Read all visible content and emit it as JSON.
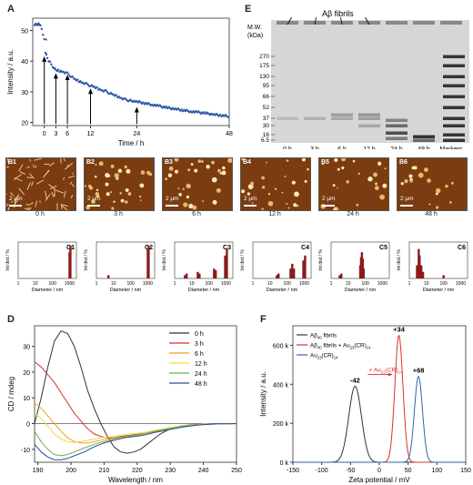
{
  "panels": {
    "A": "A",
    "B": [
      "B1",
      "B2",
      "B3",
      "B4",
      "B5",
      "B6"
    ],
    "C": [
      "C1",
      "C2",
      "C3",
      "C4",
      "C5",
      "C6"
    ],
    "D": "D",
    "E": "E",
    "F": "F"
  },
  "afm": {
    "scale": "2 μm",
    "times": [
      "0 h",
      "3 h",
      "6 h",
      "12 h",
      "24 h",
      "48 h"
    ]
  },
  "gel": {
    "title": "Aβ fibrils",
    "mw_label": "M.W.\n(kDa)",
    "mw_markers": [
      "270",
      "175",
      "130",
      "95",
      "66",
      "52",
      "37",
      "30",
      "16",
      "6.5"
    ],
    "lanes": [
      "0 h",
      "3 h",
      "6 h",
      "12 h",
      "24 h",
      "48 h",
      "Markers"
    ]
  },
  "colors": {
    "A_series": "#2a54a8",
    "D_0h": "#333333",
    "D_3h": "#d9302b",
    "D_6h": "#f0a020",
    "D_12h": "#e8e040",
    "D_24h": "#6ab04c",
    "D_48h": "#2b4e9c",
    "F_fibril": "#333333",
    "F_mix": "#d9302b",
    "F_au": "#3a5fb0",
    "C_bar": "#8b1a1a"
  },
  "chart_data": [
    {
      "id": "A",
      "type": "scatter",
      "xlabel": "Time / h",
      "ylabel": "Intensity / a.u.",
      "xticks": [
        0,
        3,
        6,
        12,
        24,
        48
      ],
      "yticks": [
        20,
        30,
        40,
        50
      ],
      "xlim": [
        -3,
        48
      ],
      "ylim": [
        19,
        54
      ],
      "arrows_at": [
        0,
        3,
        6,
        12,
        24
      ],
      "points": [
        [
          -2.5,
          52
        ],
        [
          -2,
          52
        ],
        [
          -1.5,
          52
        ],
        [
          -1,
          51.8
        ],
        [
          0,
          47
        ],
        [
          0.3,
          43
        ],
        [
          0.8,
          41
        ],
        [
          1.5,
          39.5
        ],
        [
          2.5,
          37.8
        ],
        [
          3,
          37
        ],
        [
          4,
          36.8
        ],
        [
          5,
          36.5
        ],
        [
          6,
          36
        ],
        [
          7,
          35
        ],
        [
          8,
          34
        ],
        [
          9,
          33.5
        ],
        [
          10,
          33
        ],
        [
          11,
          32.5
        ],
        [
          12,
          32
        ],
        [
          13,
          31.5
        ],
        [
          14,
          31
        ],
        [
          15,
          30.5
        ],
        [
          16,
          30.2
        ],
        [
          17,
          29.5
        ],
        [
          18,
          29
        ],
        [
          19,
          28.5
        ],
        [
          20,
          28
        ],
        [
          21,
          27.5
        ],
        [
          22,
          27.2
        ],
        [
          24,
          26.8
        ],
        [
          26,
          26.3
        ],
        [
          28,
          25.8
        ],
        [
          30,
          25.3
        ],
        [
          32,
          24.8
        ],
        [
          34,
          24.4
        ],
        [
          36,
          24
        ],
        [
          38,
          23.6
        ],
        [
          40,
          23.3
        ],
        [
          42,
          23
        ],
        [
          44,
          22.6
        ],
        [
          46,
          22.3
        ],
        [
          48,
          22
        ]
      ]
    },
    {
      "id": "C",
      "type": "bar",
      "xlabel": "Diameter / nm",
      "ylabel": "Int dist / %",
      "xticks": [
        "1",
        "10",
        "100",
        "1000"
      ],
      "series": [
        {
          "name": "C1",
          "log_x": [
            3.0,
            3.05
          ],
          "values": [
            0.8,
            1.0
          ]
        },
        {
          "name": "C2",
          "log_x": [
            0.7,
            3.0,
            3.05
          ],
          "values": [
            0.1,
            0.9,
            1.0
          ]
        },
        {
          "name": "C3",
          "log_x": [
            0.6,
            0.7,
            1.35,
            1.45,
            2.3,
            2.4,
            2.95,
            3.05
          ],
          "values": [
            0.1,
            0.15,
            0.2,
            0.15,
            0.3,
            0.25,
            0.7,
            0.9
          ]
        },
        {
          "name": "C4",
          "log_x": [
            1.4,
            1.5,
            2.2,
            2.3,
            2.4,
            2.95,
            3.05
          ],
          "values": [
            0.1,
            0.15,
            0.3,
            0.45,
            0.3,
            0.55,
            0.7
          ]
        },
        {
          "name": "C5",
          "log_x": [
            0.5,
            0.6,
            1.7,
            1.75,
            1.8,
            1.85,
            1.9
          ],
          "values": [
            0.1,
            0.15,
            0.4,
            0.65,
            0.8,
            0.6,
            0.3
          ]
        },
        {
          "name": "C6",
          "log_x": [
            0.45,
            0.55,
            0.6,
            0.7,
            0.8,
            2.0
          ],
          "values": [
            0.4,
            0.9,
            0.7,
            0.4,
            0.2,
            0.1
          ]
        }
      ]
    },
    {
      "id": "D",
      "type": "line",
      "xlabel": "Wavelength / nm",
      "ylabel": "CD / mdeg",
      "xticks": [
        190,
        200,
        210,
        220,
        230,
        240,
        250
      ],
      "yticks": [
        -10,
        0,
        10,
        20,
        30
      ],
      "xlim": [
        189,
        250
      ],
      "ylim": [
        -15,
        38
      ],
      "series": [
        {
          "name": "0 h",
          "x": [
            189,
            191,
            193,
            195,
            197,
            199,
            201,
            203,
            205,
            207,
            209,
            211,
            213,
            215,
            217,
            219,
            221,
            223,
            225,
            227,
            230,
            233,
            236,
            240,
            245,
            250
          ],
          "y": [
            0,
            10,
            22,
            32,
            36,
            35,
            30,
            22,
            13,
            6,
            0,
            -5,
            -9,
            -11,
            -11.5,
            -11,
            -10,
            -8,
            -6,
            -4,
            -2,
            -1,
            -0.5,
            -0.2,
            0,
            0
          ]
        },
        {
          "name": "3 h",
          "x": [
            189,
            191,
            193,
            195,
            197,
            199,
            201,
            203,
            205,
            207,
            209,
            211,
            213,
            215,
            218,
            221,
            224,
            227,
            230,
            235,
            240,
            250
          ],
          "y": [
            24,
            22,
            19,
            16,
            12,
            8,
            4,
            1,
            -2,
            -4,
            -5,
            -5.5,
            -5.5,
            -5,
            -4.5,
            -4,
            -3.5,
            -3,
            -2,
            -1,
            -0.3,
            0
          ]
        },
        {
          "name": "6 h",
          "x": [
            189,
            191,
            193,
            195,
            197,
            199,
            201,
            203,
            205,
            207,
            209,
            211,
            214,
            217,
            220,
            224,
            228,
            232,
            236,
            240,
            250
          ],
          "y": [
            8,
            6,
            3,
            0,
            -3,
            -5.5,
            -7,
            -7.5,
            -7.5,
            -7,
            -6.5,
            -6,
            -5.5,
            -5,
            -4.5,
            -3.5,
            -2.5,
            -1.5,
            -0.7,
            -0.2,
            0
          ]
        },
        {
          "name": "12 h",
          "x": [
            189,
            191,
            193,
            195,
            197,
            199,
            201,
            203,
            205,
            207,
            209,
            212,
            215,
            218,
            222,
            226,
            230,
            235,
            240,
            250
          ],
          "y": [
            4,
            2,
            -1,
            -4,
            -6,
            -7,
            -7.3,
            -7,
            -6.5,
            -6,
            -5.5,
            -5,
            -4.5,
            -4,
            -3.5,
            -2.5,
            -1.5,
            -0.8,
            -0.2,
            0
          ]
        },
        {
          "name": "24 h",
          "x": [
            189,
            191,
            193,
            195,
            197,
            199,
            201,
            204,
            207,
            210,
            213,
            216,
            219,
            222,
            225,
            229,
            233,
            238,
            244,
            250
          ],
          "y": [
            -3,
            -7,
            -10,
            -12,
            -12.5,
            -12,
            -11,
            -9.5,
            -8,
            -7,
            -6,
            -5,
            -4.5,
            -4,
            -3,
            -2,
            -1.2,
            -0.5,
            -0.1,
            0
          ]
        },
        {
          "name": "48 h",
          "x": [
            189,
            191,
            193,
            195,
            197,
            199,
            201,
            204,
            207,
            210,
            213,
            216,
            219,
            222,
            225,
            229,
            233,
            238,
            244,
            250
          ],
          "y": [
            -8,
            -11,
            -13,
            -14,
            -14,
            -13.5,
            -12.5,
            -11,
            -9,
            -7.5,
            -6.5,
            -5.5,
            -5,
            -4.5,
            -3.5,
            -2.5,
            -1.5,
            -0.6,
            -0.1,
            0
          ]
        }
      ]
    },
    {
      "id": "F",
      "type": "line",
      "xlabel": "Zeta potential / mV",
      "ylabel": "Intensity / a.u.",
      "xticks": [
        -150,
        -100,
        -50,
        0,
        50,
        100,
        150
      ],
      "yticks": [
        "0 k",
        "200 k",
        "400 k",
        "600 k"
      ],
      "xlim": [
        -150,
        150
      ],
      "ylim": [
        0,
        700
      ],
      "peak_labels": [
        "-42",
        "+34",
        "+68"
      ],
      "annotation": "+ Au",
      "annotation_sub": "23",
      "annotation_suffix": "(CR)",
      "annotation_sub2": "14",
      "legend": {
        "s1": "Aβ",
        "s1_sub": "40",
        "s1_tail": " fibrils",
        "s2": "Aβ",
        "s2_sub": "40",
        "s2_mid": " fibrils + Au",
        "s2_sub2": "23",
        "s2_tail": "(CR)",
        "s2_sub3": "14",
        "s3": "Au",
        "s3_sub": "23",
        "s3_tail": "(CR)",
        "s3_sub2": "14"
      },
      "series": [
        {
          "name": "s1",
          "peak": -42,
          "height": 390,
          "width": 11
        },
        {
          "name": "s2",
          "peak": 34,
          "height": 650,
          "width": 7
        },
        {
          "name": "s3",
          "peak": 68,
          "height": 440,
          "width": 7
        }
      ]
    }
  ]
}
